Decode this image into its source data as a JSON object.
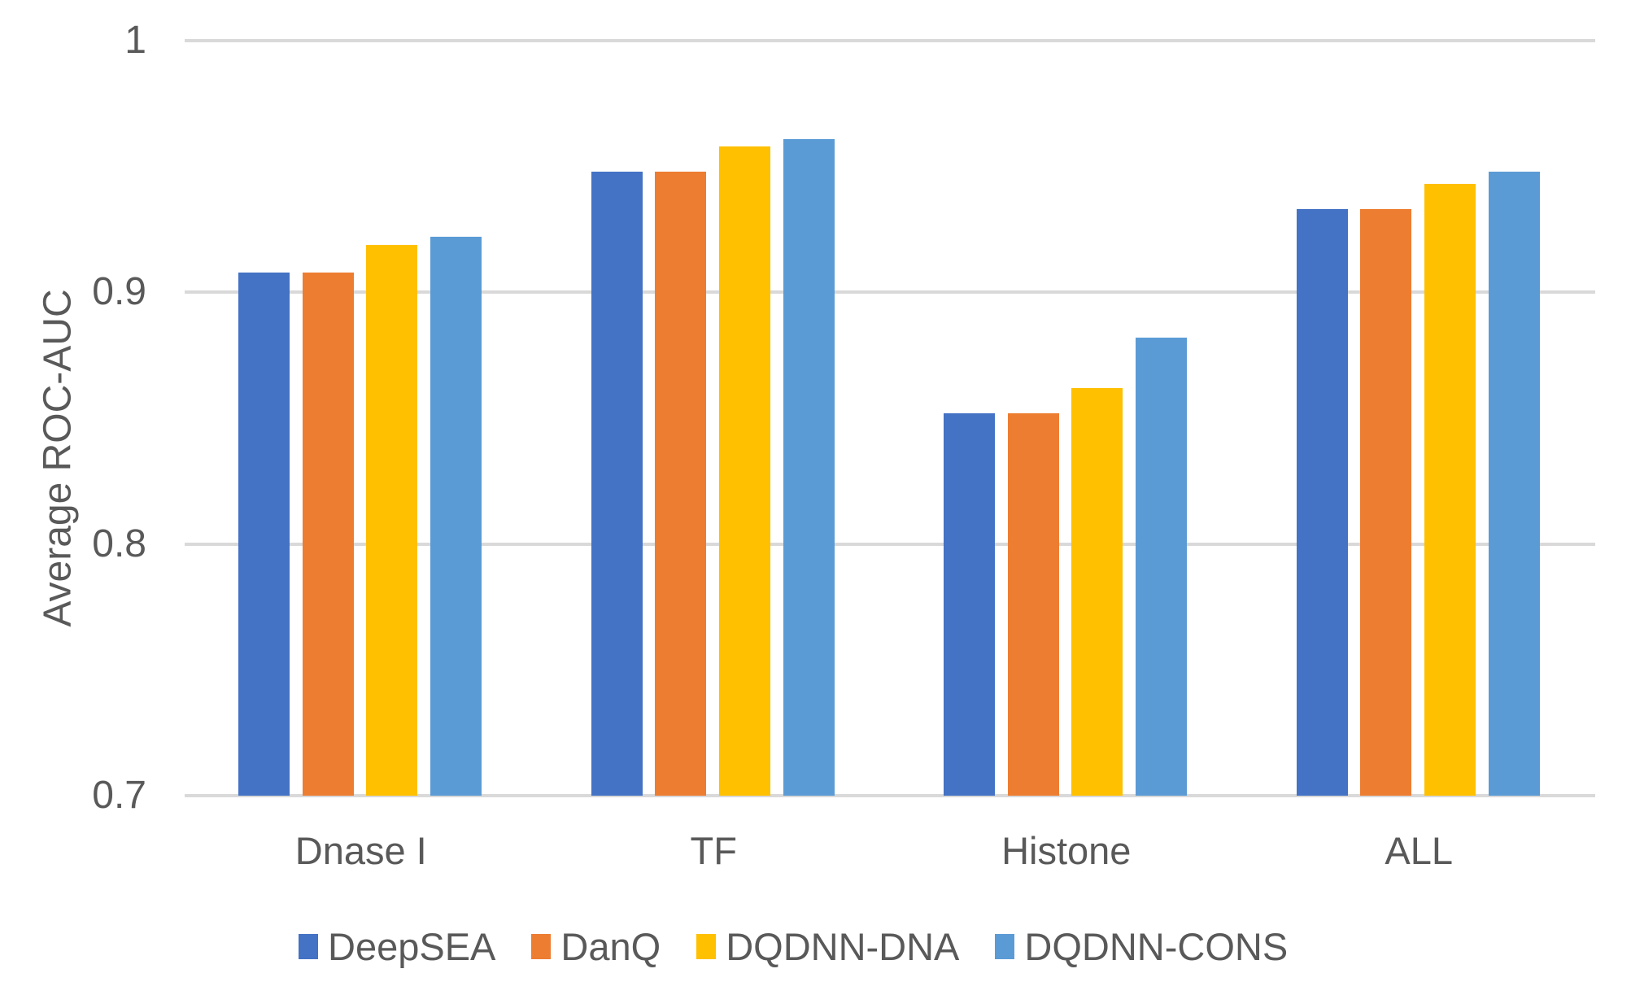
{
  "chart_data": {
    "type": "bar",
    "title": "",
    "xlabel": "",
    "ylabel": "Average ROC-AUC",
    "ylim": [
      0.7,
      1.0
    ],
    "ytick_values": [
      1.0,
      0.9,
      0.8,
      0.7
    ],
    "ytick_labels": [
      "1",
      "0.9",
      "0.8",
      "0.7"
    ],
    "grid": true,
    "legend_position": "bottom",
    "categories": [
      "Dnase I",
      "TF",
      "Histone",
      "ALL"
    ],
    "series": [
      {
        "name": "DeepSEA",
        "color": "#4472C4",
        "values": [
          0.908,
          0.948,
          0.852,
          0.933
        ]
      },
      {
        "name": "DanQ",
        "color": "#ED7D31",
        "values": [
          0.908,
          0.948,
          0.852,
          0.933
        ]
      },
      {
        "name": "DQDNN-DNA",
        "color": "#FFC000",
        "values": [
          0.919,
          0.958,
          0.862,
          0.943
        ]
      },
      {
        "name": "DQDNN-CONS",
        "color": "#5B9BD5",
        "values": [
          0.922,
          0.961,
          0.882,
          0.948
        ]
      }
    ]
  },
  "style": {
    "grid_color": "#D9D9D9",
    "text_color": "#595959",
    "background_color": "#FFFFFF"
  }
}
